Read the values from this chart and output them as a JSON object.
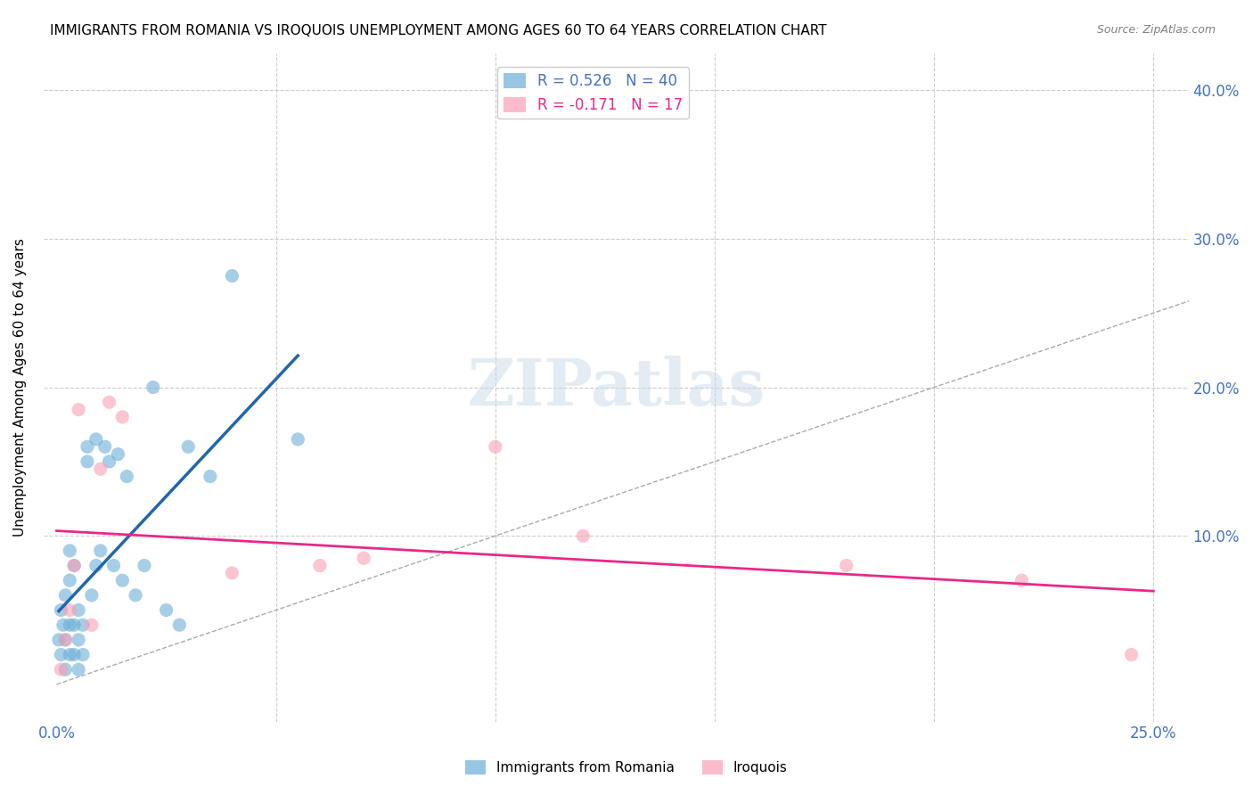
{
  "title": "IMMIGRANTS FROM ROMANIA VS IROQUOIS UNEMPLOYMENT AMONG AGES 60 TO 64 YEARS CORRELATION CHART",
  "source": "Source: ZipAtlas.com",
  "ylabel_label": "Unemployment Among Ages 60 to 64 years",
  "blue_color": "#6baed6",
  "pink_color": "#fa9fb5",
  "blue_line_color": "#2166ac",
  "pink_line_color": "#e7298a",
  "diagonal_color": "#aaaaaa",
  "tick_color": "#4472c4",
  "R_blue": 0.526,
  "N_blue": 40,
  "R_pink": -0.171,
  "N_pink": 17,
  "blue_scatter_x": [
    0.0005,
    0.001,
    0.001,
    0.0015,
    0.002,
    0.002,
    0.002,
    0.003,
    0.003,
    0.003,
    0.003,
    0.004,
    0.004,
    0.004,
    0.005,
    0.005,
    0.005,
    0.006,
    0.006,
    0.007,
    0.007,
    0.008,
    0.009,
    0.009,
    0.01,
    0.011,
    0.012,
    0.013,
    0.014,
    0.015,
    0.016,
    0.018,
    0.02,
    0.022,
    0.025,
    0.028,
    0.03,
    0.035,
    0.04,
    0.055
  ],
  "blue_scatter_y": [
    0.03,
    0.02,
    0.05,
    0.04,
    0.01,
    0.03,
    0.06,
    0.02,
    0.04,
    0.07,
    0.09,
    0.02,
    0.04,
    0.08,
    0.01,
    0.03,
    0.05,
    0.02,
    0.04,
    0.15,
    0.16,
    0.06,
    0.08,
    0.165,
    0.09,
    0.16,
    0.15,
    0.08,
    0.155,
    0.07,
    0.14,
    0.06,
    0.08,
    0.2,
    0.05,
    0.04,
    0.16,
    0.14,
    0.275,
    0.165
  ],
  "pink_scatter_x": [
    0.001,
    0.002,
    0.003,
    0.004,
    0.005,
    0.008,
    0.01,
    0.012,
    0.015,
    0.04,
    0.06,
    0.07,
    0.1,
    0.12,
    0.18,
    0.22,
    0.245
  ],
  "pink_scatter_y": [
    0.01,
    0.03,
    0.05,
    0.08,
    0.185,
    0.04,
    0.145,
    0.19,
    0.18,
    0.075,
    0.08,
    0.085,
    0.16,
    0.1,
    0.08,
    0.07,
    0.02
  ],
  "watermark": "ZIPatlas",
  "xtick_vals": [
    0.0,
    0.05,
    0.1,
    0.15,
    0.2,
    0.25
  ],
  "ytick_vals": [
    0.0,
    0.1,
    0.2,
    0.3,
    0.4
  ],
  "xlim": [
    -0.003,
    0.258
  ],
  "ylim": [
    -0.025,
    0.425
  ]
}
